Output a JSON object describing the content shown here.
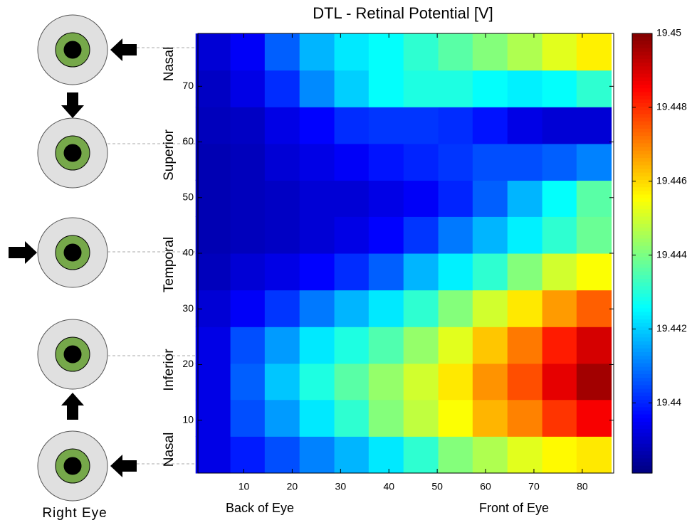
{
  "chart_data": {
    "type": "heatmap",
    "title": "DTL - Retinal Potential [V]",
    "x": [
      3.6,
      10.8,
      17.9,
      25.1,
      32.3,
      39.4,
      46.6,
      53.8,
      60.9,
      68.1,
      75.3,
      82.4
    ],
    "y": [
      3.8,
      10.4,
      17.0,
      23.5,
      30.1,
      36.7,
      43.3,
      49.9,
      56.4,
      63.0,
      69.6,
      76.2
    ],
    "z": [
      [
        19.4393,
        19.4399,
        19.4405,
        19.4411,
        19.4417,
        19.4423,
        19.4431,
        19.4441,
        19.4446,
        19.4452,
        19.4456,
        19.4458
      ],
      [
        19.4393,
        19.4405,
        19.4414,
        19.4423,
        19.4431,
        19.4441,
        19.4448,
        19.4455,
        19.4464,
        19.447,
        19.4479,
        19.4486
      ],
      [
        19.4393,
        19.4407,
        19.4419,
        19.4429,
        19.4436,
        19.4443,
        19.445,
        19.4458,
        19.4468,
        19.4476,
        19.4488,
        19.4496
      ],
      [
        19.4393,
        19.4405,
        19.4414,
        19.4423,
        19.4429,
        19.4435,
        19.4443,
        19.4452,
        19.4462,
        19.4471,
        19.4482,
        19.449
      ],
      [
        19.4391,
        19.4395,
        19.4402,
        19.441,
        19.4417,
        19.4423,
        19.4431,
        19.4441,
        19.445,
        19.4458,
        19.4467,
        19.4474
      ],
      [
        19.4388,
        19.4391,
        19.4393,
        19.4396,
        19.4401,
        19.4407,
        19.4417,
        19.4424,
        19.4431,
        19.4441,
        19.445,
        19.4455
      ],
      [
        19.4387,
        19.4388,
        19.4389,
        19.4391,
        19.4393,
        19.4396,
        19.4402,
        19.441,
        19.4417,
        19.4424,
        19.4431,
        19.4438
      ],
      [
        19.4387,
        19.4388,
        19.4389,
        19.4391,
        19.4391,
        19.4393,
        19.4395,
        19.44,
        19.4407,
        19.4417,
        19.4426,
        19.4436
      ],
      [
        19.4387,
        19.4388,
        19.4391,
        19.4393,
        19.4395,
        19.4398,
        19.44,
        19.4402,
        19.4405,
        19.4405,
        19.4407,
        19.4411
      ],
      [
        19.4388,
        19.4389,
        19.4393,
        19.4396,
        19.4401,
        19.4402,
        19.4402,
        19.4401,
        19.4398,
        19.4393,
        19.4391,
        19.4391
      ],
      [
        19.4389,
        19.4393,
        19.4401,
        19.4412,
        19.442,
        19.4426,
        19.4429,
        19.4429,
        19.4426,
        19.4424,
        19.4426,
        19.4431
      ],
      [
        19.4391,
        19.4395,
        19.4407,
        19.4417,
        19.4423,
        19.4426,
        19.4431,
        19.4436,
        19.4441,
        19.4446,
        19.4452,
        19.4457
      ]
    ],
    "xlim": [
      0.5,
      86.5
    ],
    "ylim": [
      0.5,
      79.5
    ],
    "xticks": [
      10,
      20,
      30,
      40,
      50,
      60,
      70,
      80
    ],
    "yticks": [
      10,
      20,
      30,
      40,
      50,
      60,
      70
    ],
    "clim": [
      19.4381,
      19.45
    ],
    "cticks": [
      19.44,
      19.442,
      19.444,
      19.446,
      19.448,
      19.45
    ],
    "colormap": "jet",
    "x_region_labels": [
      "Back of Eye",
      "Front of Eye"
    ],
    "y_region_labels": [
      "Nasal",
      "Inferior",
      "Temporal",
      "Superior",
      "Nasal"
    ],
    "eye_caption": "Right Eye"
  }
}
